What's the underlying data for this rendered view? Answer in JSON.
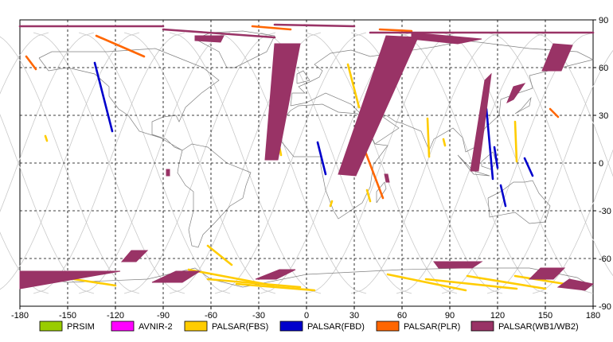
{
  "map": {
    "x_axis": {
      "min": -180,
      "max": 180,
      "ticks": [
        -180,
        -150,
        -120,
        -90,
        -60,
        -30,
        0,
        30,
        60,
        90,
        120,
        150,
        180
      ]
    },
    "y_axis": {
      "min": -90,
      "max": 90,
      "ticks": [
        90,
        60,
        30,
        0,
        -30,
        -60,
        -90
      ]
    },
    "grid": "dashed",
    "legend_position": "bottom"
  },
  "legend": [
    {
      "label": "PRSIM",
      "color": "#99cc00",
      "icon": "green-swatch-icon"
    },
    {
      "label": "AVNIR-2",
      "color": "#ff00ff",
      "icon": "magenta-swatch-icon"
    },
    {
      "label": "PALSAR(FBS)",
      "color": "#ffcc00",
      "icon": "yellow-swatch-icon"
    },
    {
      "label": "PALSAR(FBD)",
      "color": "#0000cc",
      "icon": "blue-swatch-icon"
    },
    {
      "label": "PALSAR(PLR)",
      "color": "#ff6600",
      "icon": "orange-swatch-icon"
    },
    {
      "label": "PALSAR(WB1/WB2)",
      "color": "#993366",
      "icon": "maroon-swatch-icon"
    }
  ],
  "chart_data": {
    "type": "scatter",
    "title": "",
    "xlabel": "",
    "ylabel": "",
    "xlim": [
      -180,
      180
    ],
    "ylim": [
      -90,
      90
    ],
    "series": [
      {
        "name": "PRSIM",
        "color": "#99cc00",
        "segments": []
      },
      {
        "name": "AVNIR-2",
        "color": "#ff00ff",
        "segments": []
      },
      {
        "name": "PALSAR(FBS)",
        "color": "#ffcc00",
        "segments": [
          [
            [
              -164,
              17
            ],
            [
              -163,
              14
            ]
          ],
          [
            [
              -20,
              26
            ],
            [
              -16,
              5
            ]
          ],
          [
            [
              16,
              -24
            ],
            [
              15,
              -27
            ]
          ],
          [
            [
              26,
              62
            ],
            [
              33,
              35
            ]
          ],
          [
            [
              38,
              -17
            ],
            [
              40,
              -24
            ]
          ],
          [
            [
              76,
              28
            ],
            [
              77,
              4
            ]
          ],
          [
            [
              86,
              15
            ],
            [
              87,
              11
            ]
          ],
          [
            [
              131,
              26
            ],
            [
              132,
              1
            ]
          ],
          [
            [
              -62,
              -52
            ],
            [
              -47,
              -64
            ]
          ],
          [
            [
              -74,
              -67
            ],
            [
              -21,
              -77
            ]
          ],
          [
            [
              -62,
              -73
            ],
            [
              -4,
              -78
            ]
          ],
          [
            [
              -44,
              -76
            ],
            [
              5,
              -80
            ]
          ],
          [
            [
              51,
              -70
            ],
            [
              100,
              -80
            ]
          ],
          [
            [
              75,
              -73
            ],
            [
              132,
              -79
            ]
          ],
          [
            [
              101,
              -71
            ],
            [
              150,
              -79
            ]
          ],
          [
            [
              131,
              -71
            ],
            [
              175,
              -78
            ]
          ],
          [
            [
              -146,
              -73
            ],
            [
              -120,
              -77
            ]
          ]
        ]
      },
      {
        "name": "PALSAR(FBD)",
        "color": "#0000cc",
        "segments": [
          [
            [
              -133,
              63
            ],
            [
              -122,
              20
            ]
          ],
          [
            [
              7,
              13
            ],
            [
              12,
              -7
            ]
          ],
          [
            [
              113,
              34
            ],
            [
              117,
              -10
            ]
          ],
          [
            [
              118,
              10
            ],
            [
              120,
              -3
            ]
          ],
          [
            [
              137,
              3
            ],
            [
              142,
              -8
            ]
          ],
          [
            [
              122,
              -14
            ],
            [
              125,
              -27
            ]
          ]
        ]
      },
      {
        "name": "PALSAR(PLR)",
        "color": "#ff6600",
        "segments": [
          [
            [
              -176,
              67
            ],
            [
              -170,
              59
            ]
          ],
          [
            [
              -132,
              80
            ],
            [
              -102,
              67
            ]
          ],
          [
            [
              37,
              7
            ],
            [
              48,
              -22
            ]
          ],
          [
            [
              153,
              34
            ],
            [
              158,
              29
            ]
          ],
          [
            [
              -34,
              86
            ],
            [
              -10,
              84
            ]
          ],
          [
            [
              46,
              84
            ],
            [
              66,
              83
            ]
          ]
        ]
      },
      {
        "name": "PALSAR(WB1/WB2)",
        "color": "#993366",
        "segments": [
          [
            [
              -180,
              86
            ],
            [
              -90,
              86
            ]
          ],
          [
            [
              -90,
              84
            ],
            [
              -20,
              79
            ]
          ],
          [
            [
              -20,
              87
            ],
            [
              30,
              86
            ]
          ],
          [
            [
              40,
              82
            ],
            [
              180,
              82
            ]
          ],
          [
            [
              -20,
              75
            ],
            [
              -4,
              75
            ],
            [
              -18,
              2
            ],
            [
              -26,
              2
            ]
          ],
          [
            [
              50,
              80
            ],
            [
              70,
              79
            ],
            [
              31,
              -8
            ],
            [
              20,
              -7
            ]
          ],
          [
            [
              112,
              52
            ],
            [
              116,
              56
            ],
            [
              108,
              -5
            ],
            [
              103,
              -5
            ]
          ],
          [
            [
              130,
              48
            ],
            [
              137,
              50
            ],
            [
              130,
              40
            ],
            [
              126,
              38
            ]
          ],
          [
            [
              155,
              75
            ],
            [
              167,
              74
            ],
            [
              160,
              58
            ],
            [
              148,
              58
            ]
          ],
          [
            [
              -180,
              -68
            ],
            [
              -117,
              -68
            ],
            [
              -180,
              -79
            ]
          ],
          [
            [
              -82,
              -68
            ],
            [
              -67,
              -68
            ],
            [
              -78,
              -75
            ],
            [
              -97,
              -75
            ]
          ],
          [
            [
              -17,
              -67
            ],
            [
              -7,
              -67
            ],
            [
              -19,
              -73
            ],
            [
              -32,
              -73
            ]
          ],
          [
            [
              147,
              -66
            ],
            [
              162,
              -66
            ],
            [
              155,
              -73
            ],
            [
              140,
              -73
            ]
          ],
          [
            [
              165,
              -73
            ],
            [
              180,
              -76
            ],
            [
              175,
              -80
            ],
            [
              158,
              -78
            ]
          ],
          [
            [
              -110,
              -55
            ],
            [
              -100,
              -55
            ],
            [
              -107,
              -62
            ],
            [
              -116,
              -62
            ]
          ],
          [
            [
              -88,
              -4
            ],
            [
              -86,
              -4
            ],
            [
              -86,
              -8
            ],
            [
              -88,
              -8
            ]
          ],
          [
            [
              49,
              -7
            ],
            [
              51,
              -7
            ],
            [
              52,
              -12
            ],
            [
              50,
              -12
            ]
          ],
          [
            [
              80,
              -62
            ],
            [
              110,
              -62
            ],
            [
              104,
              -66
            ],
            [
              83,
              -66
            ]
          ],
          [
            [
              66,
              82
            ],
            [
              110,
              78
            ],
            [
              95,
              75
            ],
            [
              66,
              78
            ]
          ],
          [
            [
              -70,
              80
            ],
            [
              -52,
              80
            ],
            [
              -54,
              76
            ],
            [
              -70,
              77
            ]
          ]
        ]
      }
    ]
  }
}
